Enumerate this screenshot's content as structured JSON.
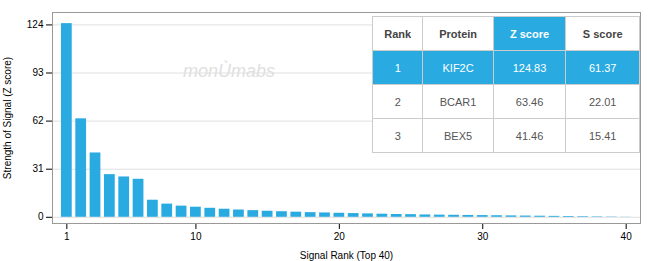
{
  "chart_data": {
    "type": "bar",
    "x": [
      1,
      2,
      3,
      4,
      5,
      6,
      7,
      8,
      9,
      10,
      11,
      12,
      13,
      14,
      15,
      16,
      17,
      18,
      19,
      20,
      21,
      22,
      23,
      24,
      25,
      26,
      27,
      28,
      29,
      30,
      31,
      32,
      33,
      34,
      35,
      36,
      37,
      38,
      39,
      40
    ],
    "values": [
      124.83,
      63.46,
      41.46,
      27.5,
      26.0,
      24.5,
      11.0,
      8.5,
      7.2,
      6.5,
      5.8,
      5.2,
      4.7,
      4.3,
      3.9,
      3.6,
      3.3,
      3.0,
      2.8,
      2.6,
      2.4,
      2.2,
      2.0,
      1.8,
      1.7,
      1.5,
      1.4,
      1.3,
      1.2,
      1.1,
      1.0,
      0.9,
      0.8,
      0.7,
      0.6,
      0.5,
      0.4,
      0.3,
      0.2,
      0.1
    ],
    "color": "#29ABE2",
    "xlabel": "Signal Rank (Top 40)",
    "ylabel": "Strength of Signal (Z score)",
    "xlim": [
      0,
      41
    ],
    "ylim": [
      -4,
      132
    ],
    "xticks": [
      1,
      10,
      20,
      30,
      40
    ],
    "yticks": [
      0,
      31,
      62,
      93,
      124
    ],
    "grid": true,
    "annotations": [
      "monÙmabs"
    ],
    "table": {
      "headers": [
        "Rank",
        "Protein",
        "Z score",
        "S score"
      ],
      "rows": [
        [
          "1",
          "KIF2C",
          "124.83",
          "61.37"
        ],
        [
          "2",
          "BCAR1",
          "63.46",
          "22.01"
        ],
        [
          "3",
          "BEX5",
          "41.46",
          "15.41"
        ]
      ]
    }
  }
}
